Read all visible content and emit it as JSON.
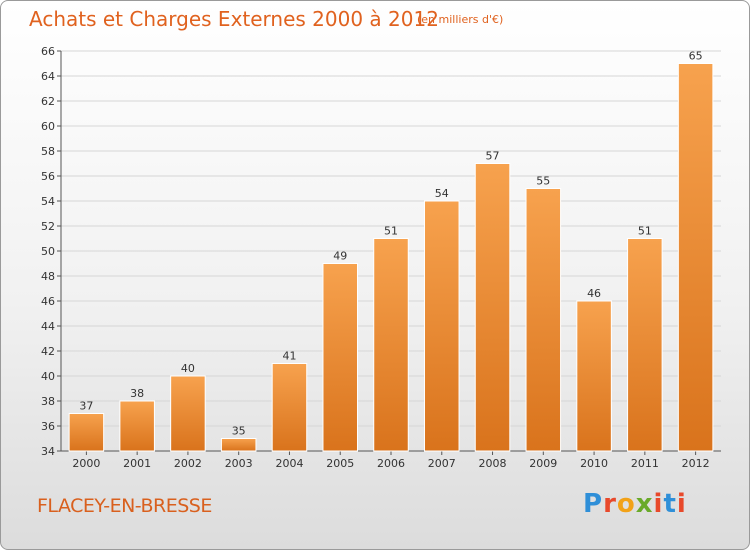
{
  "header": {
    "title": "Achats et Charges Externes 2000 à 2012",
    "unit": "(en milliers d'€)"
  },
  "footer": {
    "commune": "FLACEY-EN-BRESSE",
    "logo": "Proxiti"
  },
  "colors": {
    "bar_light": "#f7a24e",
    "bar_dark": "#d9731c",
    "title": "#e0621f"
  },
  "chart_data": {
    "type": "bar",
    "title": "Achats et Charges Externes 2000 à 2012",
    "xlabel": "",
    "ylabel": "",
    "categories": [
      "2000",
      "2001",
      "2002",
      "2003",
      "2004",
      "2005",
      "2006",
      "2007",
      "2008",
      "2009",
      "2010",
      "2011",
      "2012"
    ],
    "values": [
      37,
      38,
      40,
      35,
      41,
      49,
      51,
      54,
      57,
      55,
      46,
      51,
      65
    ],
    "ylim": [
      34,
      66
    ],
    "yticks": [
      34,
      36,
      38,
      40,
      42,
      44,
      46,
      48,
      50,
      52,
      54,
      56,
      58,
      60,
      62,
      64,
      66
    ],
    "grid": true,
    "legend": "none"
  }
}
